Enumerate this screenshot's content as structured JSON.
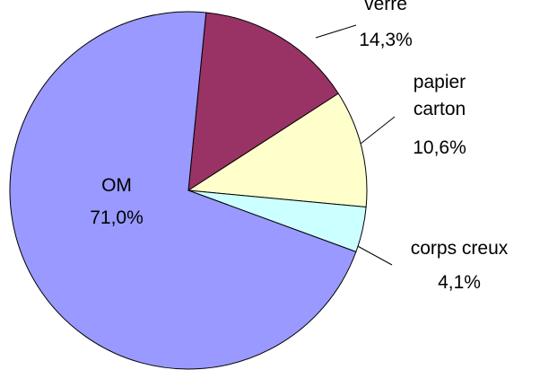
{
  "chart_data": {
    "type": "pie",
    "categories": [
      "verre",
      "papier carton",
      "corps creux",
      "OM"
    ],
    "values": [
      14.3,
      10.6,
      4.1,
      71.0
    ],
    "value_labels": [
      "14,3%",
      "10,6%",
      "4,1%",
      "71,0%"
    ],
    "colors": [
      "#993366",
      "#ffffcc",
      "#ccffff",
      "#9999ff"
    ]
  }
}
